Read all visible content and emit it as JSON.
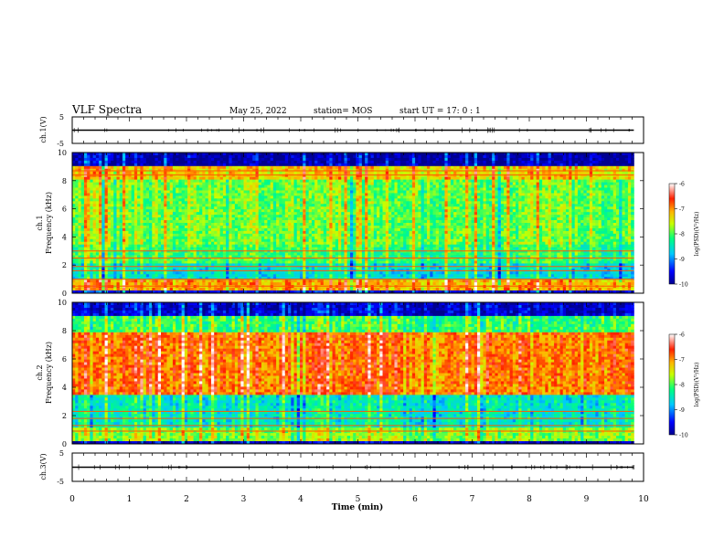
{
  "header": {
    "title": "VLF Spectra",
    "date": "May 25, 2022",
    "station": "station= MOS",
    "start": "start  UT =   17: 0  : 1"
  },
  "chart_data": [
    {
      "type": "line",
      "panel": "ch1-waveform",
      "ylabel": "ch.1(V)",
      "ylim": [
        -5,
        5
      ],
      "yticks": [
        5,
        -5
      ],
      "xlim": [
        0,
        10
      ],
      "series": [
        {
          "x": [
            0,
            9.83
          ],
          "values": [
            0,
            0
          ]
        }
      ]
    },
    {
      "type": "heatmap",
      "panel": "ch1-spectrogram",
      "ylabel": "ch.1\nFrequency (kHz)",
      "ylim": [
        0,
        10
      ],
      "yticks": [
        0,
        2,
        4,
        6,
        8,
        10
      ],
      "xlim": [
        0,
        10
      ],
      "data_end_min": 9.83,
      "bands": [
        {
          "f0": 0.0,
          "f1": 0.2,
          "level": -9.6
        },
        {
          "f0": 0.2,
          "f1": 1.0,
          "level": -7.1
        },
        {
          "f0": 1.0,
          "f1": 2.2,
          "level": -8.6
        },
        {
          "f0": 2.2,
          "f1": 3.5,
          "level": -8.1
        },
        {
          "f0": 3.5,
          "f1": 8.0,
          "level": -7.9
        },
        {
          "f0": 8.0,
          "f1": 9.0,
          "level": -7.3
        },
        {
          "f0": 9.0,
          "f1": 10.0,
          "level": -9.9
        }
      ],
      "lines_khz": [
        0.5,
        1.0,
        1.6,
        1.9,
        2.5,
        3.0,
        8.4,
        8.7
      ],
      "colorbar": {
        "label": "log(PSD)(V²/Hz)",
        "range": [
          -10,
          -6
        ],
        "ticks": [
          -6,
          -7,
          -8,
          -9,
          -10
        ]
      }
    },
    {
      "type": "heatmap",
      "panel": "ch2-spectrogram",
      "ylabel": "ch.2\nFrequency (kHz)",
      "ylim": [
        0,
        10
      ],
      "yticks": [
        0,
        2,
        4,
        6,
        8,
        10
      ],
      "xlim": [
        0,
        10
      ],
      "data_end_min": 9.83,
      "bands": [
        {
          "f0": 0.0,
          "f1": 0.2,
          "level": -9.8
        },
        {
          "f0": 0.2,
          "f1": 1.2,
          "level": -7.8
        },
        {
          "f0": 1.2,
          "f1": 3.5,
          "level": -8.5
        },
        {
          "f0": 3.5,
          "f1": 7.8,
          "level": -6.9
        },
        {
          "f0": 7.8,
          "f1": 9.0,
          "level": -8.1
        },
        {
          "f0": 9.0,
          "f1": 10.0,
          "level": -9.7
        }
      ],
      "lines_khz": [
        0.9,
        1.3,
        1.8,
        2.3
      ],
      "colorbar": {
        "label": "log(PSD)(V²/Hz)",
        "range": [
          -10,
          -6
        ],
        "ticks": [
          -6,
          -7,
          -8,
          -9,
          -10
        ]
      }
    },
    {
      "type": "line",
      "panel": "ch3-waveform",
      "ylabel": "ch.3(V)",
      "ylim": [
        -5,
        5
      ],
      "yticks": [
        5,
        -5
      ],
      "xlim": [
        0,
        10
      ],
      "series": [
        {
          "x": [
            0,
            9.83
          ],
          "values": [
            0,
            0
          ]
        }
      ]
    }
  ],
  "xaxis": {
    "label": "Time (min)",
    "ticks": [
      0,
      1,
      2,
      3,
      4,
      5,
      6,
      7,
      8,
      9,
      10
    ],
    "minor_step": 0.2
  }
}
